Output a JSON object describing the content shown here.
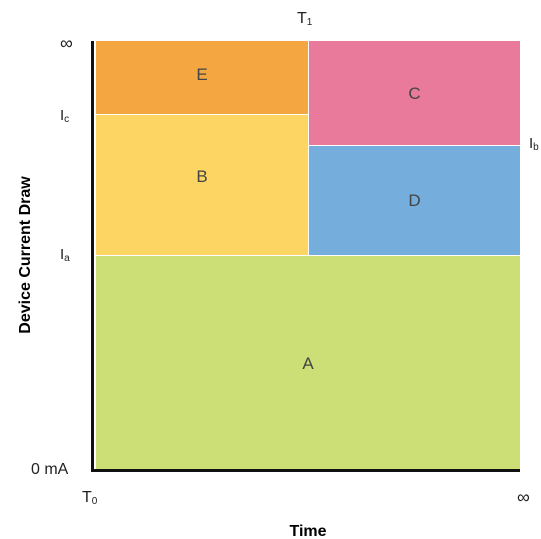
{
  "regions": {
    "e": {
      "label": "E",
      "color": "#F4A741"
    },
    "c": {
      "label": "C",
      "color": "#EA7A9C"
    },
    "b": {
      "label": "B",
      "color": "#FDD562"
    },
    "d": {
      "label": "D",
      "color": "#75AEDC"
    },
    "a": {
      "label": "A",
      "color": "#CCDE76"
    }
  },
  "y_ticks": {
    "infinity": "∞",
    "ic_main": "I",
    "ic_sub": "c",
    "ia_main": "I",
    "ia_sub": "a",
    "ib_main": "I",
    "ib_sub": "b",
    "zero": "0 mA"
  },
  "x_ticks": {
    "t0_main": "T",
    "t0_sub": "0",
    "t1_main": "T",
    "t1_sub": "1",
    "infinity": "∞"
  },
  "axes": {
    "y_title": "Device Current Draw",
    "x_title": "Time"
  }
}
